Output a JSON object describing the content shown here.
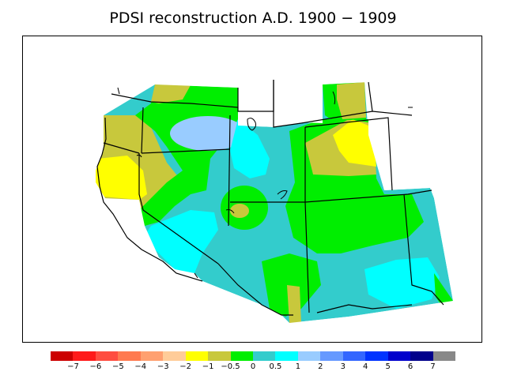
{
  "title": "PDSI reconstruction A.D. 1900 − 1909",
  "legend": {
    "colors": [
      "#cc0000",
      "#ff1a1a",
      "#ff4d40",
      "#ff7a50",
      "#ffa070",
      "#ffcc99",
      "#ffff00",
      "#c8c83c",
      "#00ee00",
      "#33cccc",
      "#00ffff",
      "#99ccff",
      "#6699ff",
      "#3366ff",
      "#0033ff",
      "#0000cc",
      "#00008b",
      "#888888"
    ],
    "ticks": [
      "−7",
      "−6",
      "−5",
      "−4",
      "−3",
      "−2",
      "−1",
      "−0.5",
      "0",
      "0.5",
      "1",
      "2",
      "3",
      "4",
      "5",
      "6",
      "7"
    ]
  }
}
